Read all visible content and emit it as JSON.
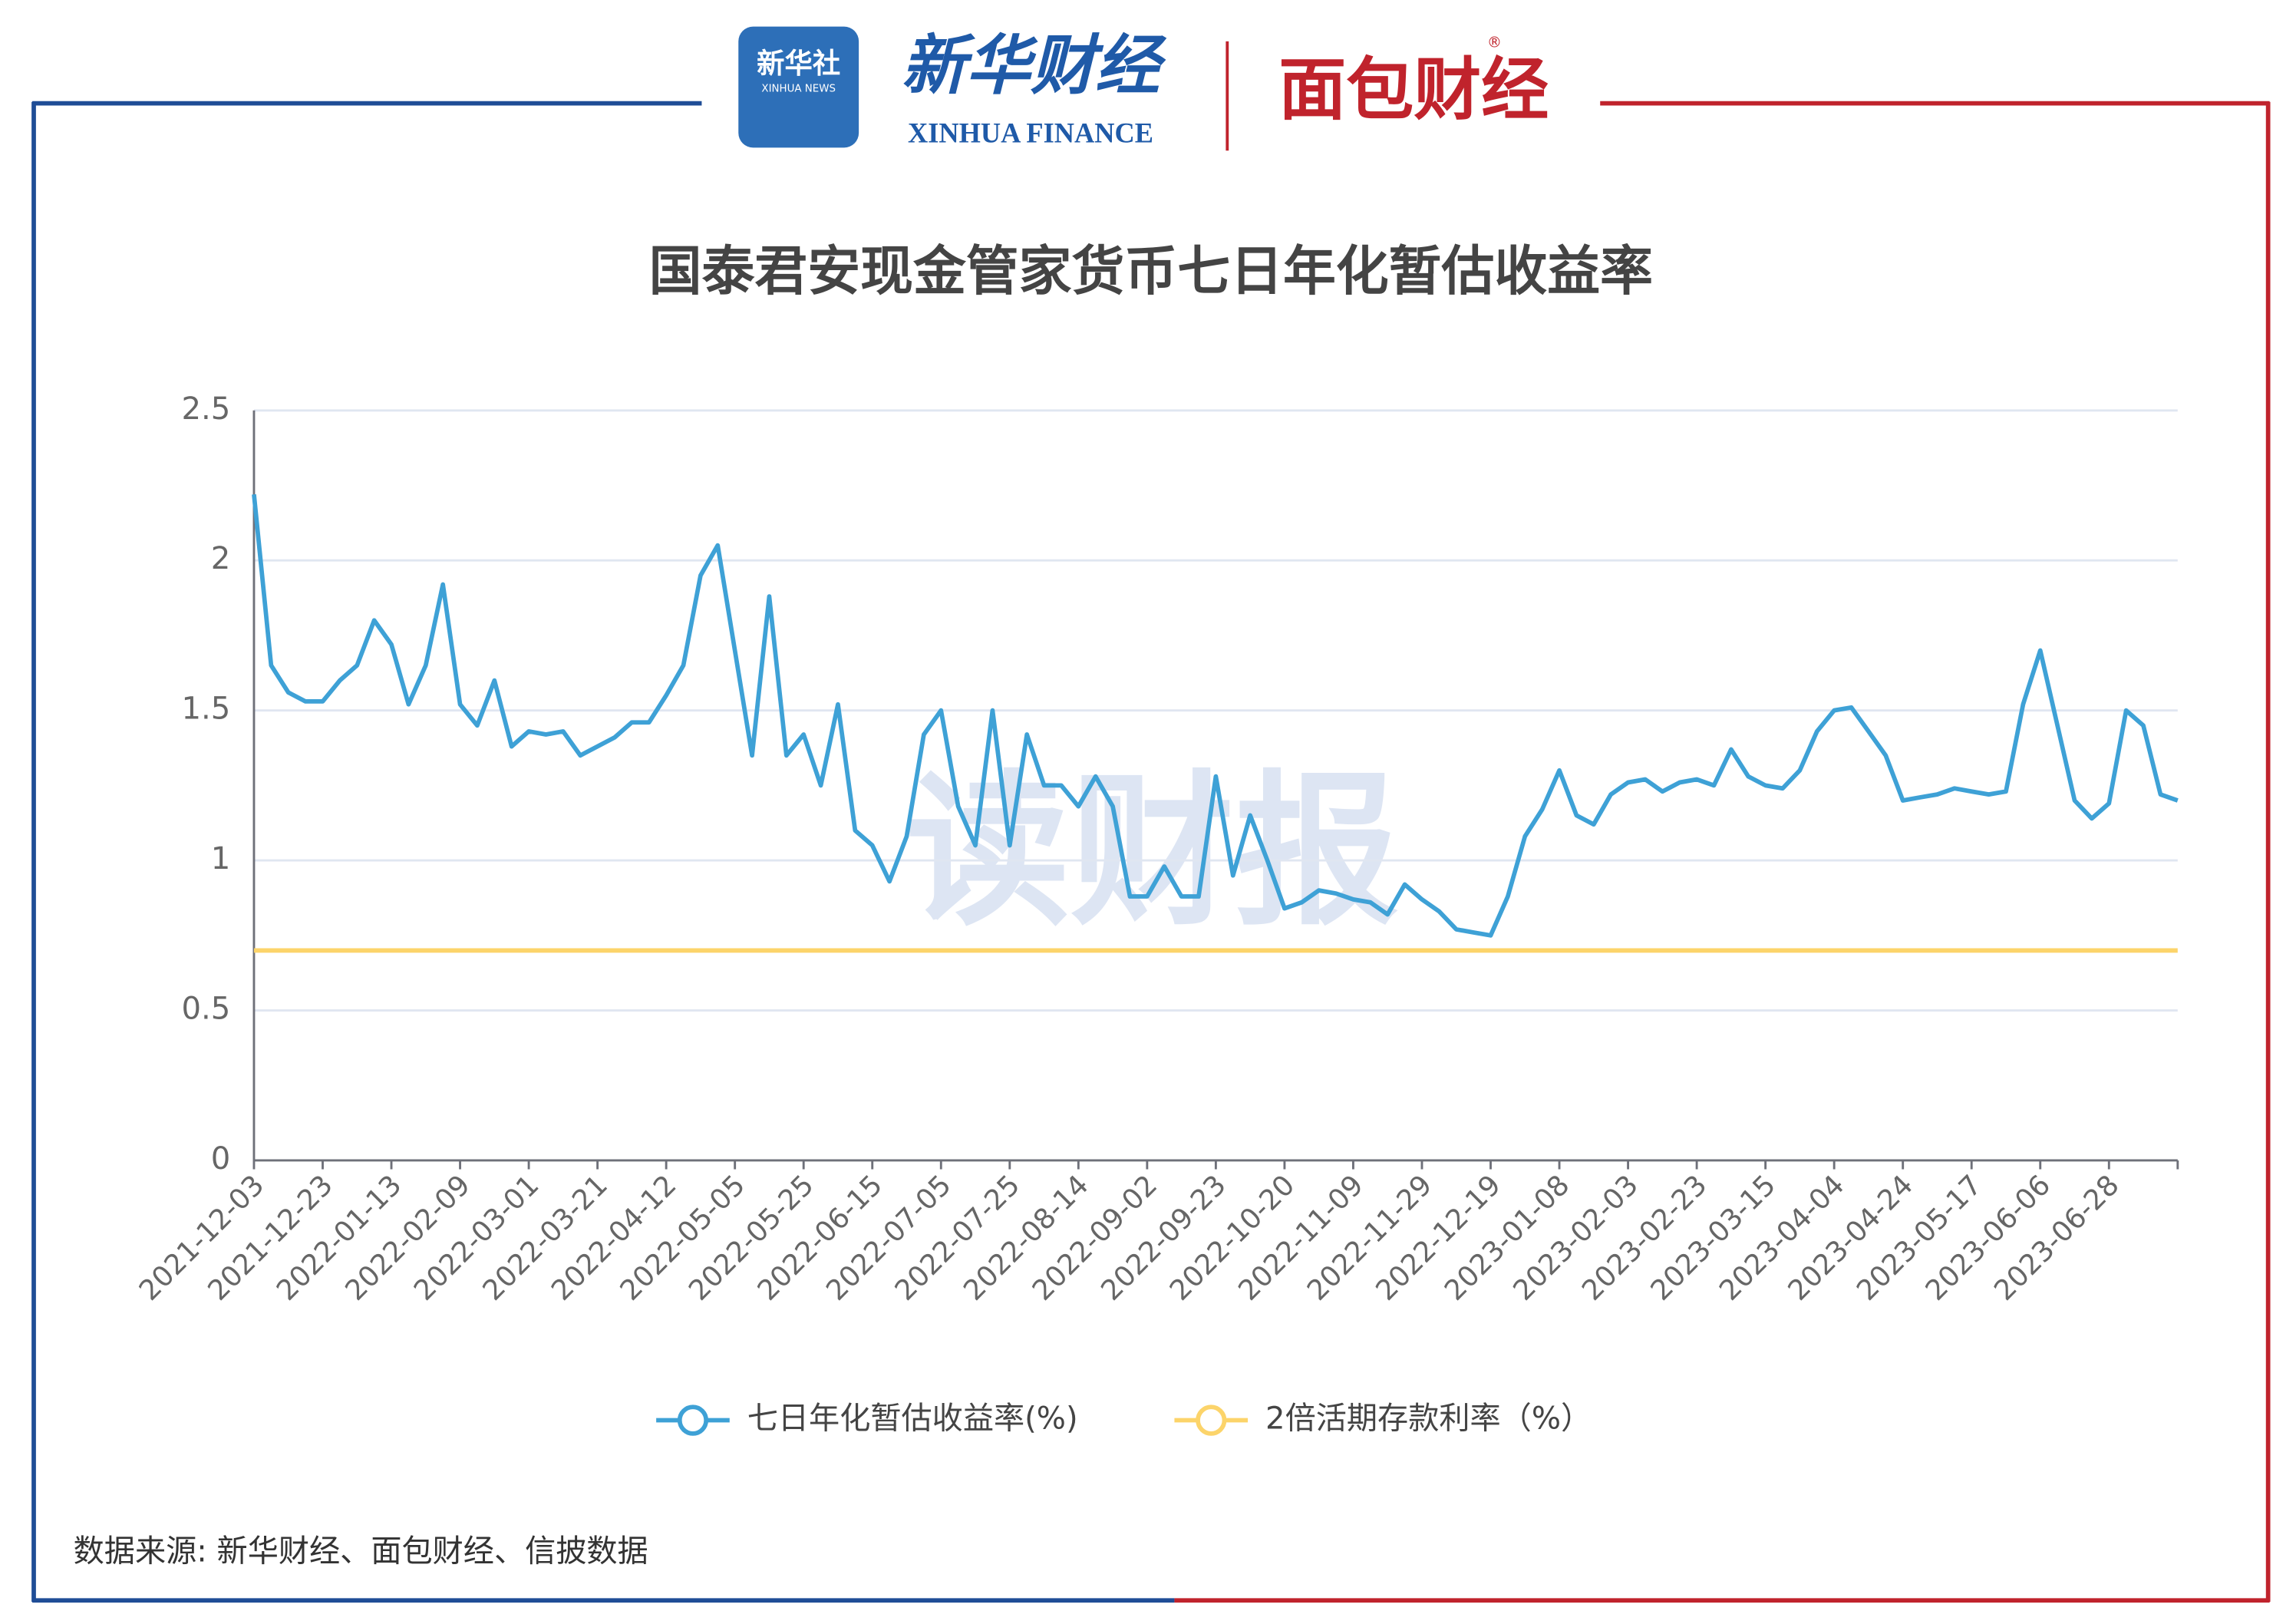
{
  "header": {
    "brand_cn": "新华社",
    "brand_en": "XINHUA NEWS",
    "finance_cn": "新华财经",
    "finance_en": "XINHUA FINANCE",
    "partner": "面包财经",
    "registered": "®"
  },
  "chart_data": {
    "type": "line",
    "title": "国泰君安现金管家货币七日年化暂估收益率",
    "watermark": "读财报",
    "categories": [
      "2021-12-03",
      null,
      null,
      null,
      "2021-12-23",
      null,
      null,
      null,
      "2022-01-13",
      null,
      null,
      null,
      "2022-02-09",
      null,
      null,
      null,
      "2022-03-01",
      null,
      null,
      null,
      "2022-03-21",
      null,
      null,
      null,
      "2022-04-12",
      null,
      null,
      null,
      "2022-05-05",
      null,
      null,
      null,
      "2022-05-25",
      null,
      null,
      null,
      "2022-06-15",
      null,
      null,
      null,
      "2022-07-05",
      null,
      null,
      null,
      "2022-07-25",
      null,
      null,
      null,
      "2022-08-14",
      null,
      null,
      null,
      "2022-09-02",
      null,
      null,
      null,
      "2022-09-23",
      null,
      null,
      null,
      "2022-10-20",
      null,
      null,
      null,
      "2022-11-09",
      null,
      null,
      null,
      "2022-11-29",
      null,
      null,
      null,
      "2022-12-19",
      null,
      null,
      null,
      "2023-01-08",
      null,
      null,
      null,
      "2023-02-03",
      null,
      null,
      null,
      "2023-02-23",
      null,
      null,
      null,
      "2023-03-15",
      null,
      null,
      null,
      "2023-04-04",
      null,
      null,
      null,
      "2023-04-24",
      null,
      null,
      null,
      "2023-05-17",
      null,
      null,
      null,
      "2023-06-06",
      null,
      null,
      null,
      "2023-06-28",
      null,
      null,
      null,
      null
    ],
    "series": [
      {
        "name": "七日年化暂估收益率(%)",
        "color": "#3ea1d6",
        "values": [
          2.22,
          1.65,
          1.56,
          1.53,
          1.53,
          1.6,
          1.65,
          1.8,
          1.72,
          1.52,
          1.65,
          1.92,
          1.52,
          1.45,
          1.6,
          1.38,
          1.43,
          1.42,
          1.43,
          1.35,
          1.38,
          1.41,
          1.46,
          1.46,
          1.55,
          1.65,
          1.95,
          2.05,
          1.7,
          1.35,
          1.88,
          1.35,
          1.42,
          1.25,
          1.52,
          1.1,
          1.05,
          0.93,
          1.08,
          1.42,
          1.5,
          1.18,
          1.05,
          1.5,
          1.05,
          1.42,
          1.25,
          1.25,
          1.18,
          1.28,
          1.18,
          0.88,
          0.88,
          0.98,
          0.88,
          0.88,
          1.28,
          0.95,
          1.15,
          1.0,
          0.84,
          0.86,
          0.9,
          0.89,
          0.87,
          0.86,
          0.82,
          0.92,
          0.87,
          0.83,
          0.77,
          0.76,
          0.75,
          0.88,
          1.08,
          1.17,
          1.3,
          1.15,
          1.12,
          1.22,
          1.26,
          1.27,
          1.23,
          1.26,
          1.27,
          1.25,
          1.37,
          1.28,
          1.25,
          1.24,
          1.3,
          1.43,
          1.5,
          1.51,
          1.43,
          1.35,
          1.2,
          1.21,
          1.22,
          1.24,
          1.23,
          1.22,
          1.23,
          1.52,
          1.7,
          1.45,
          1.2,
          1.14,
          1.19,
          1.5,
          1.45,
          1.22,
          1.2
        ]
      },
      {
        "name": "2倍活期存款利率（%）",
        "color": "#fcd46a",
        "values": [
          0.7,
          0.7,
          0.7,
          0.7,
          0.7,
          0.7,
          0.7,
          0.7,
          0.7,
          0.7,
          0.7,
          0.7,
          0.7,
          0.7,
          0.7,
          0.7,
          0.7,
          0.7,
          0.7,
          0.7,
          0.7,
          0.7,
          0.7,
          0.7,
          0.7,
          0.7,
          0.7,
          0.7,
          0.7,
          0.7,
          0.7,
          0.7,
          0.7,
          0.7,
          0.7,
          0.7,
          0.7,
          0.7,
          0.7,
          0.7,
          0.7,
          0.7,
          0.7,
          0.7,
          0.7,
          0.7,
          0.7,
          0.7,
          0.7,
          0.7,
          0.7,
          0.7,
          0.7,
          0.7,
          0.7,
          0.7,
          0.7,
          0.7,
          0.7,
          0.7,
          0.7,
          0.7,
          0.7,
          0.7,
          0.7,
          0.7,
          0.7,
          0.7,
          0.7,
          0.7,
          0.7,
          0.7,
          0.7,
          0.7,
          0.7,
          0.7,
          0.7,
          0.7,
          0.7,
          0.7,
          0.7,
          0.7,
          0.7,
          0.7,
          0.7,
          0.7,
          0.7,
          0.7,
          0.7,
          0.7,
          0.7,
          0.7,
          0.7,
          0.7,
          0.7,
          0.7,
          0.7,
          0.7,
          0.7,
          0.7,
          0.7,
          0.7,
          0.7,
          0.7,
          0.7,
          0.7,
          0.7,
          0.7,
          0.7,
          0.7,
          0.7,
          0.7,
          0.7
        ]
      }
    ],
    "ylim": [
      0,
      2.5
    ],
    "yticks": [
      0,
      0.5,
      1,
      1.5,
      2,
      2.5
    ],
    "grid": true,
    "legend": "bottom"
  },
  "footer": {
    "source": "数据来源: 新华财经、面包财经、信披数据"
  }
}
